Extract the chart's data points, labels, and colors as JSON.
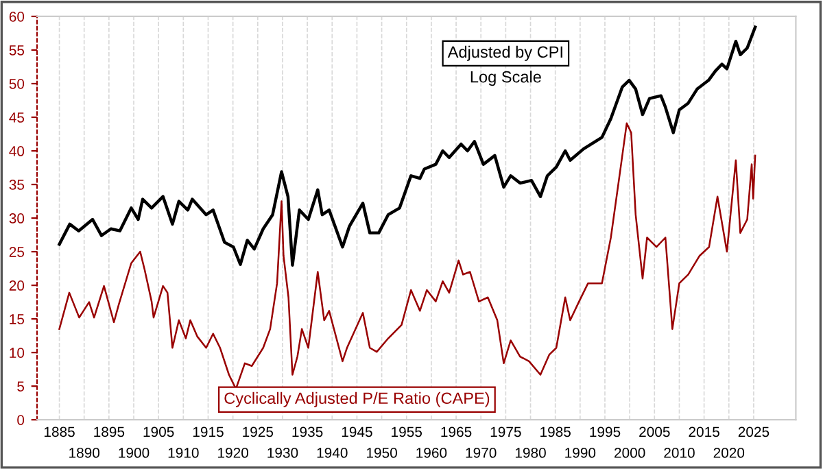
{
  "chart_data": {
    "type": "line",
    "xlim": [
      1880.5,
      2033.5
    ],
    "ylim": [
      0,
      60
    ],
    "xticks": [
      1885,
      1895,
      1905,
      1915,
      1925,
      1935,
      1945,
      1955,
      1965,
      1975,
      1985,
      1995,
      2005,
      2015,
      2025
    ],
    "x2lim": [
      1880.5,
      2033.5
    ],
    "x2ticks": [
      1890,
      1900,
      1910,
      1920,
      1930,
      1940,
      1950,
      1960,
      1970,
      1980,
      1990,
      2000,
      2010,
      2020
    ],
    "yticks": [
      0,
      5,
      10,
      15,
      20,
      25,
      30,
      35,
      40,
      45,
      50,
      55,
      60
    ],
    "grid": "x",
    "legend": false,
    "marker": "none",
    "line_style": "solid",
    "annotations": [
      "Log Scale"
    ],
    "series": [
      {
        "name": "Adjusted by CPI",
        "color": "#000000",
        "x": [
          1885,
          1887.1,
          1888.9,
          1891.7,
          1893.5,
          1895.4,
          1897.2,
          1899.5,
          1900.9,
          1901.8,
          1903.6,
          1905.9,
          1907.8,
          1909.1,
          1910.9,
          1911.8,
          1914.6,
          1916,
          1918.3,
          1920.1,
          1921.5,
          1922.9,
          1924.3,
          1926.1,
          1928,
          1929.8,
          1931.1,
          1932.0,
          1933.4,
          1935.2,
          1937.1,
          1938,
          1939.4,
          1942.1,
          1943.5,
          1946.2,
          1947.6,
          1949.4,
          1951.3,
          1953.6,
          1955.9,
          1957.7,
          1958.6,
          1960.9,
          1962.3,
          1963.6,
          1966,
          1967.3,
          1968.7,
          1970.5,
          1972.8,
          1974.6,
          1976,
          1977.9,
          1980.2,
          1982,
          1983.4,
          1985.2,
          1987,
          1988,
          1990.7,
          1994.4,
          1996.2,
          1998.5,
          1999.9,
          2001.2,
          2002.6,
          2004,
          2006.3,
          2007.2,
          2008.8,
          2010,
          2011.8,
          2013.6,
          2015.9,
          2017.3,
          2018.6,
          2019.6,
          2021.4,
          2022.3,
          2023.7,
          2025.3
        ],
        "values": [
          26.1,
          29.1,
          28.1,
          29.8,
          27.4,
          28.4,
          28.1,
          31.5,
          29.8,
          32.8,
          31.5,
          33.2,
          29.1,
          32.5,
          31.2,
          32.8,
          30.5,
          31.2,
          26.4,
          25.7,
          23.1,
          26.7,
          25.4,
          28.4,
          30.5,
          36.9,
          33.2,
          23.0,
          31.2,
          29.8,
          34.2,
          30.5,
          31.2,
          25.7,
          28.8,
          32.2,
          27.8,
          27.8,
          30.5,
          31.5,
          36.3,
          35.9,
          37.3,
          38.0,
          40.0,
          39.0,
          41.0,
          40.0,
          41.4,
          38.0,
          39.3,
          34.6,
          36.3,
          35.2,
          35.6,
          33.2,
          36.3,
          37.6,
          40.0,
          38.6,
          40.3,
          42.0,
          44.8,
          49.5,
          50.5,
          49.2,
          45.4,
          47.8,
          48.2,
          46.5,
          42.7,
          46.1,
          47.1,
          49.2,
          50.5,
          51.9,
          52.9,
          52.2,
          56.3,
          54.3,
          55.3,
          58.4
        ]
      },
      {
        "name": "Cyclically Adjusted P/E Ratio (CAPE)",
        "color": "#990000",
        "x": [
          1885,
          1887,
          1889,
          1891,
          1892,
          1894,
          1896,
          1897,
          1899.5,
          1901.3,
          1902.2,
          1903.6,
          1904,
          1905.9,
          1906.8,
          1907.8,
          1909.1,
          1910.5,
          1911.4,
          1912.8,
          1914.6,
          1916,
          1917.4,
          1919.2,
          1920.6,
          1922.4,
          1923.8,
          1926.1,
          1927.5,
          1928.9,
          1929.8,
          1930.2,
          1931.2,
          1932.0,
          1933,
          1933.9,
          1935.2,
          1937.1,
          1938.4,
          1939.4,
          1942.1,
          1943,
          1946.2,
          1947.6,
          1949,
          1951.3,
          1954,
          1955.9,
          1957.7,
          1959.1,
          1960.9,
          1962.3,
          1963.6,
          1965.5,
          1966.4,
          1967.8,
          1969.6,
          1971.4,
          1973.3,
          1974.6,
          1976,
          1977.9,
          1979.7,
          1982,
          1983.8,
          1985.2,
          1987,
          1988,
          1989.8,
          1991.6,
          1994.4,
          1996.2,
          1998,
          1999.4,
          2000.3,
          2001.2,
          2002.6,
          2003.5,
          2005.4,
          2007.2,
          2008.6,
          2010,
          2011.8,
          2014.1,
          2016,
          2017.7,
          2019.6,
          2021.4,
          2022.3,
          2023.7,
          2024.6,
          2024.9,
          2025.3
        ],
        "values": [
          13.5,
          18.9,
          15.2,
          17.5,
          15.2,
          19.9,
          14.5,
          17.2,
          23.3,
          25.0,
          22.3,
          17.6,
          15.2,
          19.9,
          18.9,
          10.7,
          14.8,
          12.1,
          14.8,
          12.4,
          10.7,
          12.8,
          10.7,
          6.7,
          4.6,
          8.4,
          8.0,
          10.7,
          13.5,
          20.3,
          32.5,
          24.4,
          18.2,
          6.7,
          9.4,
          13.5,
          10.7,
          22.0,
          14.8,
          16.2,
          8.7,
          10.7,
          15.9,
          10.7,
          10.1,
          12.1,
          14.1,
          19.3,
          16.2,
          19.3,
          17.6,
          20.6,
          18.9,
          23.7,
          21.6,
          22.0,
          17.6,
          18.2,
          14.8,
          8.4,
          11.8,
          9.4,
          8.7,
          6.7,
          9.7,
          10.7,
          18.2,
          14.8,
          17.6,
          20.3,
          20.3,
          27.1,
          36.6,
          44.1,
          42.7,
          30.5,
          21.0,
          27.1,
          25.7,
          27.1,
          13.5,
          20.3,
          21.6,
          24.4,
          25.7,
          33.2,
          25.0,
          38.6,
          27.8,
          29.8,
          38.0,
          32.9,
          39.3
        ]
      }
    ]
  }
}
